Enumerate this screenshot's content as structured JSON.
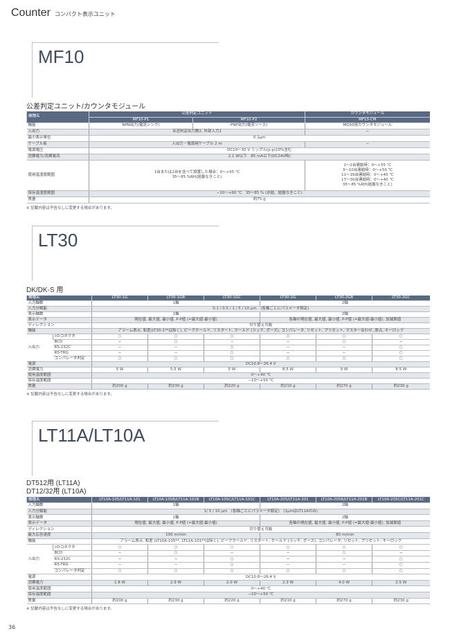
{
  "header": {
    "title": "Counter",
    "subtitle": "コンパクト表示ユニット"
  },
  "page_number": "36",
  "colors": {
    "header_bg": "#5a6983",
    "shade": "#e3e7eb",
    "title": "#3d4a60"
  },
  "sections": [
    {
      "title": "MF10",
      "subtitles": [
        "公差判定ユニット/カウンタモジュール"
      ],
      "note": "※ 記載内容は予告なしに変更する場合があります。",
      "table": {
        "head": [
          [
            {
              "t": "機種名",
              "rs": 2,
              "lbl": 1
            },
            {
              "t": "公差判定ユニット",
              "cs": 2
            },
            {
              "t": "カウンタモジュール"
            }
          ],
          [
            {
              "t": "MF10-P1"
            },
            {
              "t": "MF10-P2"
            },
            {
              "t": "MF10-CM"
            }
          ]
        ],
        "rows": [
          {
            "label": "機能",
            "cells": [
              {
                "t": "NPN出力(電流シンク)"
              },
              {
                "t": "PNP出力(電流ソース)"
              },
              {
                "t": "MG50用カウンタモジュール"
              }
            ]
          },
          {
            "label": "入出力",
            "shade": true,
            "cells": [
              {
                "t": "合否判定出力数2, 外部入力1",
                "cs": 2
              },
              {
                "t": "−"
              }
            ]
          },
          {
            "label": "最小表示単位",
            "cells": [
              {
                "t": "0.1μm",
                "cs": 3
              }
            ]
          },
          {
            "label": "ケーブル長",
            "shade": true,
            "cells": [
              {
                "t": "入出力・電源用ケーブル 2 m",
                "cs": 2
              },
              {
                "t": "−"
              }
            ]
          },
          {
            "label": "電源電圧",
            "cells": [
              {
                "t": "DC10～30 V リップル(p-p)10%含む",
                "cs": 3
              }
            ]
          },
          {
            "label": "消費電力/消費電流",
            "shade": true,
            "cells": [
              {
                "t": "2.1 W以下　85 mA以下(DC24V時)",
                "cs": 3
              }
            ]
          },
          {
            "label": "使用温湿度範囲",
            "cells": [
              {
                "t": "1台または2台を並べて設置した場合：0～+55 ℃\n35～85 %RH(結露なきこと)",
                "cs": 2
              },
              {
                "t": "1～2台連結時：0～+55 ℃\n3～10台連結時：0～+50 ℃\n11～16台連結時：0～+45 ℃\n17～30台連結時：0～+40 ℃\n35～85 %RH(結露なきこと)"
              }
            ]
          },
          {
            "label": "保存温湿度範囲",
            "shade": true,
            "cells": [
              {
                "t": "−10～+60 ℃　35～85 % (氷結、結露なきこと)",
                "cs": 3
              }
            ]
          },
          {
            "label": "質量",
            "cells": [
              {
                "t": "約75 g",
                "cs": 3
              }
            ]
          }
        ]
      }
    },
    {
      "title": "LT30",
      "subtitles": [
        "DK/DK-S 用"
      ],
      "note": "※ 記載内容は予告なしに変更する場合があります。",
      "table": {
        "head": [
          [
            {
              "t": "機種名",
              "cs": 2,
              "lbl": 1
            },
            {
              "t": "LT30-1G"
            },
            {
              "t": "LT30-1GB"
            },
            {
              "t": "LT30-1GC"
            },
            {
              "t": "LT30-2G"
            },
            {
              "t": "LT30-2GB"
            },
            {
              "t": "LT30-2GC"
            }
          ]
        ],
        "rows": [
          {
            "label": "入力軸数",
            "cells": [
              {
                "t": "1軸",
                "cs": 3
              },
              {
                "t": "2軸",
                "cs": 3
              }
            ]
          },
          {
            "label": "入力分解能",
            "shade": true,
            "cells": [
              {
                "t": "0.1 / 0.5 / 1 / 5 / 10 μm　(各軸ごとにパラメータ設定)",
                "cs": 6
              }
            ]
          },
          {
            "label": "表示軸数",
            "cells": [
              {
                "t": "1軸",
                "cs": 3
              },
              {
                "t": "2軸",
                "cs": 3
              }
            ]
          },
          {
            "label": "表示データ",
            "shade": true,
            "cells": [
              {
                "t": "現在値, 最大値, 最小値, P-P値 (=最大値-最小値)",
                "cs": 3
              },
              {
                "t": "各軸の現在値, 最大値, 最小値, P-P値 (=最大値-最小値), 加減算値",
                "cs": 3
              }
            ]
          },
          {
            "label": "ディレクション",
            "cells": [
              {
                "t": "切り替え可能",
                "cs": 6
              }
            ]
          },
          {
            "label": "機能",
            "shade": true,
            "cells": [
              {
                "t": "アラーム表示, 和差(LT30-1**は除く), ピークホールド, リスタート, ホールド (ラッチ, ポーズ), コンパレータ, リセット, プリセット, マスター合わせ, 原点, キーロック",
                "cs": 6
              }
            ]
          },
          {
            "group": "入出力",
            "rows": [
              {
                "label": "I/Oコネクタ",
                "cells": [
                  {
                    "t": "○"
                  },
                  {
                    "t": "○"
                  },
                  {
                    "t": "○"
                  },
                  {
                    "t": "○"
                  },
                  {
                    "t": "○"
                  },
                  {
                    "t": "○"
                  }
                ]
              },
              {
                "label": "BCD",
                "cells": [
                  {
                    "t": "−"
                  },
                  {
                    "t": "○"
                  },
                  {
                    "t": "−"
                  },
                  {
                    "t": "−"
                  },
                  {
                    "t": "○"
                  },
                  {
                    "t": "−"
                  }
                ]
              },
              {
                "label": "RS-232C",
                "cells": [
                  {
                    "t": "−"
                  },
                  {
                    "t": "−"
                  },
                  {
                    "t": "○"
                  },
                  {
                    "t": "−"
                  },
                  {
                    "t": "−"
                  },
                  {
                    "t": "○"
                  }
                ]
              },
              {
                "label": "RS-TRG",
                "cells": [
                  {
                    "t": "−"
                  },
                  {
                    "t": "−"
                  },
                  {
                    "t": "○"
                  },
                  {
                    "t": "−"
                  },
                  {
                    "t": "−"
                  },
                  {
                    "t": "○"
                  }
                ]
              },
              {
                "label": "コンパレータ判定",
                "cells": [
                  {
                    "t": "○"
                  },
                  {
                    "t": "○"
                  },
                  {
                    "t": "○"
                  },
                  {
                    "t": "○"
                  },
                  {
                    "t": "○"
                  },
                  {
                    "t": "○"
                  }
                ]
              }
            ]
          },
          {
            "label": "電源",
            "shade": true,
            "cells": [
              {
                "t": "DC10.8～26.4 V",
                "cs": 6
              }
            ]
          },
          {
            "label": "消費電力",
            "cells": [
              {
                "t": "5 W"
              },
              {
                "t": "5.5 W"
              },
              {
                "t": "5 W"
              },
              {
                "t": "8.5 W"
              },
              {
                "t": "9 W"
              },
              {
                "t": "8.5 W"
              }
            ]
          },
          {
            "label": "使用温度範囲",
            "shade": true,
            "cells": [
              {
                "t": "0～+40 ℃",
                "cs": 6
              }
            ]
          },
          {
            "label": "保存温度範囲",
            "cells": [
              {
                "t": "−10～+50 ℃",
                "cs": 6
              }
            ]
          },
          {
            "label": "質量",
            "shade": true,
            "cells": [
              {
                "t": "約200 g"
              },
              {
                "t": "約230 g"
              },
              {
                "t": "約220 g"
              },
              {
                "t": "約210 g"
              },
              {
                "t": "約270 g"
              },
              {
                "t": "約230 g"
              }
            ]
          }
        ]
      }
    },
    {
      "title": "LT11A/LT10A",
      "subtitles": [
        "DT512用 (LT11A)",
        "DT12/32用 (LT10A)"
      ],
      "note": "※ 記載内容は予告なしに変更する場合があります。",
      "table": {
        "head": [
          [
            {
              "t": "機種名",
              "cs": 2,
              "lbl": 1
            },
            {
              "t": "LT10A-105/LT11A-101"
            },
            {
              "t": "LT10A-105B/LT11A-101B"
            },
            {
              "t": "LT10A-105C/LT11A-101C"
            },
            {
              "t": "LT10A-205/LT11A-201"
            },
            {
              "t": "LT10A-205B/LT11A-201B"
            },
            {
              "t": "LT10A-205C/LT11A-201C"
            }
          ]
        ],
        "rows": [
          {
            "label": "入力軸数",
            "cells": [
              {
                "t": "1軸",
                "cs": 3
              },
              {
                "t": "2軸",
                "cs": 3
              }
            ]
          },
          {
            "label": "入力分解能",
            "shade": true,
            "cells": [
              {
                "t": "1/ 5 / 10 μm　(各軸ごとにパラメータ設定)　(1μmはLT11Aのみ)",
                "cs": 6
              }
            ]
          },
          {
            "label": "表示軸数",
            "cells": [
              {
                "t": "1軸",
                "cs": 3
              },
              {
                "t": "2軸",
                "cs": 3
              }
            ]
          },
          {
            "label": "表示データ",
            "shade": true,
            "cells": [
              {
                "t": "現在値, 最大値, 最小値, P-P値 (=最大値-最小値)",
                "cs": 3
              },
              {
                "t": "各軸の現在値, 最大値, 最小値, P-P値 (=最大値-最小値), 加減算値",
                "cs": 3
              }
            ]
          },
          {
            "label": "ディレクション",
            "cells": [
              {
                "t": "切り替え可能",
                "cs": 6
              }
            ]
          },
          {
            "label": "最大応答速度",
            "shade": true,
            "cells": [
              {
                "t": "100 m/min",
                "cs": 3
              },
              {
                "t": "80 m/min",
                "cs": 3
              }
            ]
          },
          {
            "label": "機能",
            "cells": [
              {
                "t": "アラーム表示, 和差 (LT10A-105**, LT11A-101**は除く), ピークホールド, リスタート, ホールド (ラッチ, ポーズ), コンパレータ, リセット, プリセット, キーロック",
                "cs": 6
              }
            ]
          },
          {
            "group": "入出力",
            "rows": [
              {
                "label": "I/Oコネクタ",
                "cells": [
                  {
                    "t": "○"
                  },
                  {
                    "t": "○"
                  },
                  {
                    "t": "○"
                  },
                  {
                    "t": "○"
                  },
                  {
                    "t": "○"
                  },
                  {
                    "t": "○"
                  }
                ]
              },
              {
                "label": "BCD",
                "cells": [
                  {
                    "t": "−"
                  },
                  {
                    "t": "○"
                  },
                  {
                    "t": "−"
                  },
                  {
                    "t": "−"
                  },
                  {
                    "t": "○"
                  },
                  {
                    "t": "−"
                  }
                ]
              },
              {
                "label": "RS-232C",
                "cells": [
                  {
                    "t": "−"
                  },
                  {
                    "t": "−"
                  },
                  {
                    "t": "○"
                  },
                  {
                    "t": "−"
                  },
                  {
                    "t": "−"
                  },
                  {
                    "t": "○"
                  }
                ]
              },
              {
                "label": "RS-TRG",
                "cells": [
                  {
                    "t": "−"
                  },
                  {
                    "t": "−"
                  },
                  {
                    "t": "○"
                  },
                  {
                    "t": "−"
                  },
                  {
                    "t": "−"
                  },
                  {
                    "t": "○"
                  }
                ]
              },
              {
                "label": "コンパレータ判定",
                "cells": [
                  {
                    "t": "○"
                  },
                  {
                    "t": "○"
                  },
                  {
                    "t": "○"
                  },
                  {
                    "t": "○"
                  },
                  {
                    "t": "○"
                  },
                  {
                    "t": "○"
                  }
                ]
              }
            ]
          },
          {
            "label": "電源",
            "cells": [
              {
                "t": "DC10.8～26.4 V",
                "cs": 6
              }
            ]
          },
          {
            "label": "消費電力",
            "shade": true,
            "cells": [
              {
                "t": "1.8 W"
              },
              {
                "t": "2.9 W"
              },
              {
                "t": "2.0 W"
              },
              {
                "t": "2.3 W"
              },
              {
                "t": "4.0 W"
              },
              {
                "t": "2.5 W"
              }
            ]
          },
          {
            "label": "使用温度範囲",
            "cells": [
              {
                "t": "0～+40 ℃",
                "cs": 6
              }
            ]
          },
          {
            "label": "保存温度範囲",
            "shade": true,
            "cells": [
              {
                "t": "−10～+50 ℃",
                "cs": 6
              }
            ]
          },
          {
            "label": "質量",
            "cells": [
              {
                "t": "約200 g"
              },
              {
                "t": "約230 g"
              },
              {
                "t": "約220 g"
              },
              {
                "t": "約210 g"
              },
              {
                "t": "約270 g"
              },
              {
                "t": "約230 g"
              }
            ]
          }
        ]
      }
    }
  ]
}
